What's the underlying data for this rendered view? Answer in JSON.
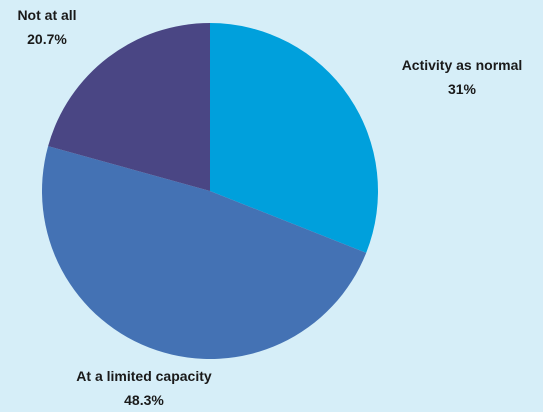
{
  "chart_data": {
    "type": "pie",
    "title": "",
    "start_angle_deg": 0,
    "direction": "clockwise",
    "slices": [
      {
        "label": "Activity as normal",
        "value": 31,
        "value_label": "31%",
        "color": "#00a0dc"
      },
      {
        "label": "At a limited capacity",
        "value": 48.3,
        "value_label": "48.3%",
        "color": "#4472b4"
      },
      {
        "label": "Not at all",
        "value": 20.7,
        "value_label": "20.7%",
        "color": "#4a4684"
      }
    ],
    "legend": "none",
    "background": "#d6eef8"
  }
}
